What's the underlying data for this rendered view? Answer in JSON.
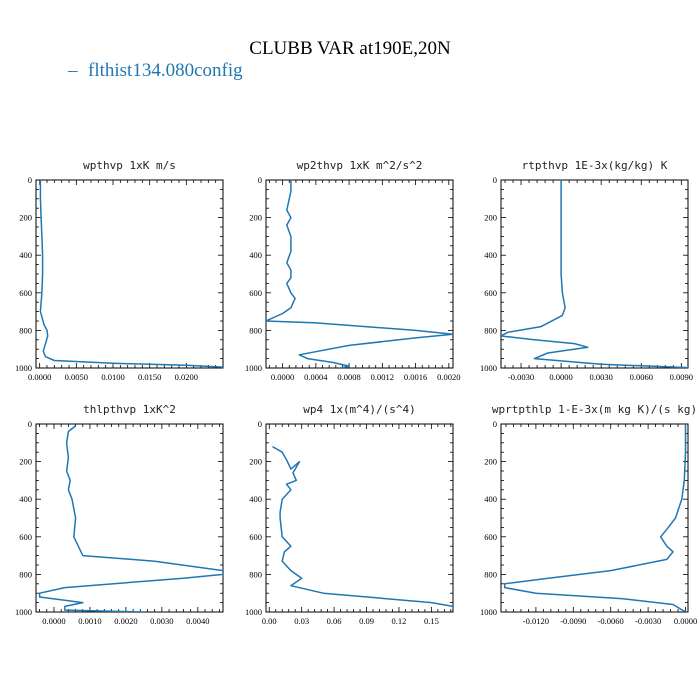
{
  "figure": {
    "title": "CLUBB VAR at190E,20N",
    "legend": "flthist134.080config",
    "series_color": "#1f77b4"
  },
  "chart_data": [
    {
      "type": "line",
      "title": "wpthvp  1xK m/s",
      "xlim": [
        -0.0005,
        0.025
      ],
      "ylim": [
        1000,
        0
      ],
      "xticks": [
        0,
        0.005,
        0.01,
        0.015,
        0.02
      ],
      "xtick_labels": [
        "0.0000",
        "0.0050",
        "0.0100",
        "0.0150",
        "0.0200"
      ],
      "yticks": [
        0,
        200,
        400,
        600,
        800,
        1000
      ],
      "ytick_labels": [
        "0",
        "200",
        "400",
        "600",
        "800",
        "1000"
      ],
      "series": [
        {
          "x": [
            0.0001,
            0.0001,
            0.0002,
            0.0003,
            0.0004,
            0.0004,
            0.0003,
            0.0001,
            0.0006,
            0.001,
            0.0011,
            0.0008,
            0.0005,
            0.0008,
            0.002,
            0.01,
            0.02,
            0.025
          ],
          "y": [
            0,
            100,
            200,
            300,
            400,
            500,
            600,
            700,
            770,
            800,
            830,
            870,
            910,
            940,
            960,
            975,
            985,
            995
          ]
        }
      ]
    },
    {
      "type": "line",
      "title": "wp2thvp  1xK m^2/s^2",
      "xlim": [
        -0.0002,
        0.00205
      ],
      "ylim": [
        1000,
        0
      ],
      "xticks": [
        0,
        0.0004,
        0.0008,
        0.0012,
        0.0016,
        0.002
      ],
      "xtick_labels": [
        "0.0000",
        "0.0004",
        "0.0008",
        "0.0012",
        "0.0016",
        "0.0020"
      ],
      "yticks": [
        0,
        200,
        400,
        600,
        800,
        1000
      ],
      "ytick_labels": [
        "0",
        "200",
        "400",
        "600",
        "800",
        "1000"
      ],
      "series": [
        {
          "x": [
            0.0001,
            0.0001,
            5e-05,
            0.0001,
            5e-05,
            0.0001,
            0.0001,
            5e-05,
            0.0001,
            0.0001,
            5e-05,
            0.0001,
            0.00015,
            0.0001,
            0.0,
            -0.0002,
            0.0004,
            0.0016,
            0.00205,
            0.0016,
            0.0008,
            0.0002,
            0.0003,
            0.0006,
            0.0008,
            0.0007
          ],
          "y": [
            0,
            60,
            160,
            200,
            240,
            300,
            380,
            440,
            480,
            520,
            550,
            600,
            630,
            680,
            710,
            750,
            760,
            800,
            820,
            840,
            880,
            930,
            950,
            970,
            990,
            1000
          ]
        }
      ]
    },
    {
      "type": "line",
      "title": "rtpthvp  1E-3x(kg/kg) K",
      "xlim": [
        -0.0045,
        0.0095
      ],
      "ylim": [
        1000,
        0
      ],
      "xticks": [
        -0.003,
        0,
        0.003,
        0.006,
        0.009
      ],
      "xtick_labels": [
        "-0.0030",
        "0.0000",
        "0.0030",
        "0.0060",
        "0.0090"
      ],
      "yticks": [
        0,
        200,
        400,
        600,
        800,
        1000
      ],
      "ytick_labels": [
        "0",
        "200",
        "400",
        "600",
        "800",
        "1000"
      ],
      "series": [
        {
          "x": [
            0.0,
            0.0,
            0.0,
            0.0,
            0.0,
            0.0,
            0.0001,
            0.0003,
            0.0001,
            -0.0015,
            -0.004,
            -0.0045,
            -0.002,
            0.001,
            0.002,
            -0.001,
            -0.002,
            0.003,
            0.0095
          ],
          "y": [
            0,
            100,
            200,
            300,
            400,
            500,
            600,
            680,
            720,
            780,
            810,
            830,
            850,
            870,
            890,
            920,
            950,
            980,
            998
          ]
        }
      ]
    },
    {
      "type": "line",
      "title": "thlpthvp  1xK^2",
      "xlim": [
        -0.0005,
        0.0047
      ],
      "ylim": [
        1000,
        0
      ],
      "xticks": [
        0,
        0.001,
        0.002,
        0.003,
        0.004
      ],
      "xtick_labels": [
        "0.0000",
        "0.0010",
        "0.0020",
        "0.0030",
        "0.0040"
      ],
      "yticks": [
        0,
        200,
        400,
        600,
        800,
        1000
      ],
      "ytick_labels": [
        "0",
        "200",
        "400",
        "600",
        "800",
        "1000"
      ],
      "series": [
        {
          "x": [
            0.0006,
            0.0004,
            0.00035,
            0.0004,
            0.00035,
            0.00045,
            0.0004,
            0.0005,
            0.0006,
            0.00055,
            0.0008,
            0.0028,
            0.0047,
            0.0047,
            0.0036,
            0.0003,
            -0.0004,
            -0.0004,
            0.0008,
            0.0003,
            0.0003,
            0.0025
          ],
          "y": [
            10,
            40,
            100,
            180,
            250,
            300,
            350,
            400,
            500,
            600,
            700,
            730,
            780,
            800,
            820,
            870,
            900,
            920,
            950,
            970,
            990,
            1000
          ]
        }
      ]
    },
    {
      "type": "line",
      "title": "wp4  1x(m^4)/(s^4)",
      "xlim": [
        -0.003,
        0.17
      ],
      "ylim": [
        1000,
        0
      ],
      "xticks": [
        0,
        0.03,
        0.06,
        0.09,
        0.12,
        0.15
      ],
      "xtick_labels": [
        "0.00",
        "0.03",
        "0.06",
        "0.09",
        "0.12",
        "0.15"
      ],
      "yticks": [
        0,
        200,
        400,
        600,
        800,
        1000
      ],
      "ytick_labels": [
        "0",
        "200",
        "400",
        "600",
        "800",
        "1000"
      ],
      "series": [
        {
          "x": [
            0.003,
            0.012,
            0.016,
            0.02,
            0.028,
            0.022,
            0.025,
            0.016,
            0.02,
            0.012,
            0.01,
            0.01,
            0.012,
            0.02,
            0.014,
            0.012,
            0.02,
            0.03,
            0.02,
            0.05,
            0.15,
            0.17,
            0.17
          ],
          "y": [
            120,
            150,
            190,
            240,
            200,
            260,
            300,
            320,
            350,
            400,
            470,
            500,
            600,
            650,
            680,
            730,
            780,
            820,
            860,
            900,
            950,
            970,
            990
          ]
        }
      ]
    },
    {
      "type": "line",
      "title": "wprtpthlp  1-E-3x(m kg K)/(s kg)",
      "xlim": [
        -0.0148,
        0.0002
      ],
      "ylim": [
        1000,
        0
      ],
      "xticks": [
        -0.012,
        -0.009,
        -0.006,
        -0.003,
        0
      ],
      "xtick_labels": [
        "-0.0120",
        "-0.0090",
        "-0.0060",
        "-0.0030",
        "0.0000"
      ],
      "yticks": [
        0,
        200,
        400,
        600,
        800,
        1000
      ],
      "ytick_labels": [
        "0",
        "200",
        "400",
        "600",
        "800",
        "1000"
      ],
      "series": [
        {
          "x": [
            0.0,
            0.0,
            -0.0001,
            -0.0003,
            -0.0008,
            -0.0015,
            -0.002,
            -0.0015,
            -0.001,
            -0.0015,
            -0.006,
            -0.011,
            -0.0145,
            -0.0145,
            -0.012,
            -0.005,
            -0.001,
            0.0
          ],
          "y": [
            0,
            150,
            300,
            400,
            500,
            560,
            600,
            650,
            680,
            720,
            780,
            820,
            850,
            870,
            900,
            930,
            960,
            1000
          ]
        }
      ]
    }
  ]
}
